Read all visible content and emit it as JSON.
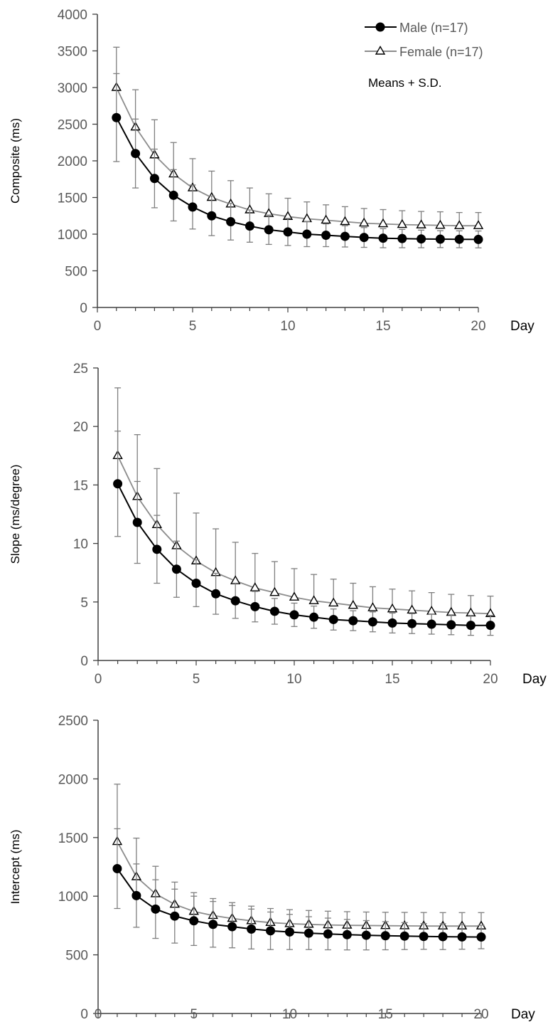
{
  "legend": {
    "male_label": "Male (n=17)",
    "female_label": "Female (n=17)",
    "note": "Means + S.D."
  },
  "colors": {
    "male": "#000000",
    "female": "#8c8c8c",
    "errorbar": "#7f7f7f",
    "axis": "#404040"
  },
  "chart_data": [
    {
      "type": "line",
      "title": "",
      "xlabel": "Day",
      "ylabel": "Composite (ms)",
      "xlim": [
        0,
        20
      ],
      "ylim": [
        0,
        4000
      ],
      "xticks": [
        0,
        5,
        10,
        15,
        20
      ],
      "yticks": [
        0,
        500,
        1000,
        1500,
        2000,
        2500,
        3000,
        3500,
        4000
      ],
      "grid": false,
      "legend_position": "top-right",
      "x": [
        1,
        2,
        3,
        4,
        5,
        6,
        7,
        8,
        9,
        10,
        11,
        12,
        13,
        14,
        15,
        16,
        17,
        18,
        19,
        20
      ],
      "series": [
        {
          "name": "Male (n=17)",
          "marker": "filled-circle",
          "values": [
            2590,
            2100,
            1760,
            1530,
            1370,
            1250,
            1170,
            1110,
            1060,
            1030,
            1000,
            985,
            970,
            955,
            945,
            940,
            935,
            932,
            930,
            928
          ],
          "error_plus": [
            600,
            470,
            400,
            350,
            300,
            270,
            250,
            220,
            200,
            185,
            170,
            155,
            145,
            135,
            130,
            125,
            120,
            115,
            115,
            115
          ],
          "error_minus": [
            600,
            470,
            400,
            350,
            300,
            270,
            250,
            220,
            200,
            185,
            170,
            155,
            145,
            135,
            130,
            125,
            120,
            115,
            115,
            115
          ]
        },
        {
          "name": "Female (n=17)",
          "marker": "open-triangle",
          "values": [
            3000,
            2460,
            2080,
            1820,
            1630,
            1500,
            1410,
            1330,
            1280,
            1240,
            1210,
            1190,
            1170,
            1150,
            1140,
            1130,
            1125,
            1120,
            1115,
            1115
          ],
          "error_plus": [
            550,
            510,
            480,
            430,
            400,
            360,
            320,
            300,
            270,
            250,
            230,
            210,
            205,
            200,
            195,
            190,
            185,
            185,
            180,
            180
          ]
        }
      ]
    },
    {
      "type": "line",
      "title": "",
      "xlabel": "Day",
      "ylabel": "Slope (ms/degree)",
      "xlim": [
        0,
        20
      ],
      "ylim": [
        0,
        25
      ],
      "xticks": [
        0,
        5,
        10,
        15,
        20
      ],
      "yticks": [
        0,
        5,
        10,
        15,
        20,
        25
      ],
      "grid": false,
      "x": [
        1,
        2,
        3,
        4,
        5,
        6,
        7,
        8,
        9,
        10,
        11,
        12,
        13,
        14,
        15,
        16,
        17,
        18,
        19,
        20
      ],
      "series": [
        {
          "name": "Male (n=17)",
          "marker": "filled-circle",
          "values": [
            15.1,
            11.8,
            9.5,
            7.8,
            6.6,
            5.7,
            5.1,
            4.6,
            4.2,
            3.9,
            3.7,
            3.5,
            3.4,
            3.3,
            3.2,
            3.15,
            3.1,
            3.05,
            3.0,
            3.0
          ],
          "error_plus": [
            4.5,
            3.5,
            2.9,
            2.4,
            2.0,
            1.75,
            1.5,
            1.3,
            1.1,
            1.0,
            0.95,
            0.9,
            0.85,
            0.85,
            0.85,
            0.85,
            0.85,
            0.85,
            0.85,
            0.85
          ],
          "error_minus": [
            4.5,
            3.5,
            2.9,
            2.4,
            2.0,
            1.75,
            1.5,
            1.3,
            1.1,
            1.0,
            0.95,
            0.9,
            0.85,
            0.85,
            0.85,
            0.85,
            0.85,
            0.85,
            0.85,
            0.85
          ]
        },
        {
          "name": "Female (n=17)",
          "marker": "open-triangle",
          "values": [
            17.5,
            14.0,
            11.6,
            9.8,
            8.5,
            7.5,
            6.8,
            6.2,
            5.8,
            5.4,
            5.1,
            4.9,
            4.7,
            4.5,
            4.4,
            4.3,
            4.2,
            4.1,
            4.05,
            4.0
          ],
          "error_plus": [
            5.8,
            5.3,
            4.8,
            4.5,
            4.1,
            3.75,
            3.3,
            2.95,
            2.65,
            2.45,
            2.25,
            2.05,
            1.9,
            1.8,
            1.7,
            1.65,
            1.6,
            1.55,
            1.5,
            1.5
          ]
        }
      ]
    },
    {
      "type": "line",
      "title": "",
      "xlabel": "Day",
      "ylabel": "Intercept (ms)",
      "xlim": [
        0,
        20
      ],
      "ylim": [
        0,
        2500
      ],
      "xticks": [
        0,
        5,
        10,
        15,
        20
      ],
      "yticks": [
        0,
        500,
        1000,
        1500,
        2000,
        2500
      ],
      "grid": false,
      "x": [
        1,
        2,
        3,
        4,
        5,
        6,
        7,
        8,
        9,
        10,
        11,
        12,
        13,
        14,
        15,
        16,
        17,
        18,
        19,
        20
      ],
      "series": [
        {
          "name": "Male (n=17)",
          "marker": "filled-circle",
          "values": [
            1235,
            1005,
            890,
            830,
            790,
            760,
            740,
            720,
            705,
            695,
            685,
            678,
            672,
            667,
            663,
            660,
            657,
            655,
            653,
            652
          ],
          "error_plus": [
            340,
            270,
            250,
            230,
            210,
            195,
            180,
            170,
            160,
            150,
            140,
            135,
            130,
            125,
            120,
            115,
            110,
            110,
            105,
            100
          ],
          "error_minus": [
            340,
            270,
            250,
            230,
            210,
            195,
            180,
            170,
            160,
            150,
            140,
            135,
            130,
            125,
            120,
            115,
            110,
            110,
            105,
            100
          ]
        },
        {
          "name": "Female (n=17)",
          "marker": "open-triangle",
          "values": [
            1465,
            1165,
            1020,
            930,
            870,
            835,
            810,
            790,
            775,
            765,
            760,
            755,
            752,
            750,
            748,
            747,
            746,
            745,
            745,
            745
          ],
          "error_plus": [
            490,
            330,
            235,
            190,
            160,
            145,
            135,
            125,
            120,
            120,
            118,
            117,
            116,
            115,
            115,
            115,
            115,
            115,
            115,
            115
          ]
        }
      ]
    }
  ]
}
